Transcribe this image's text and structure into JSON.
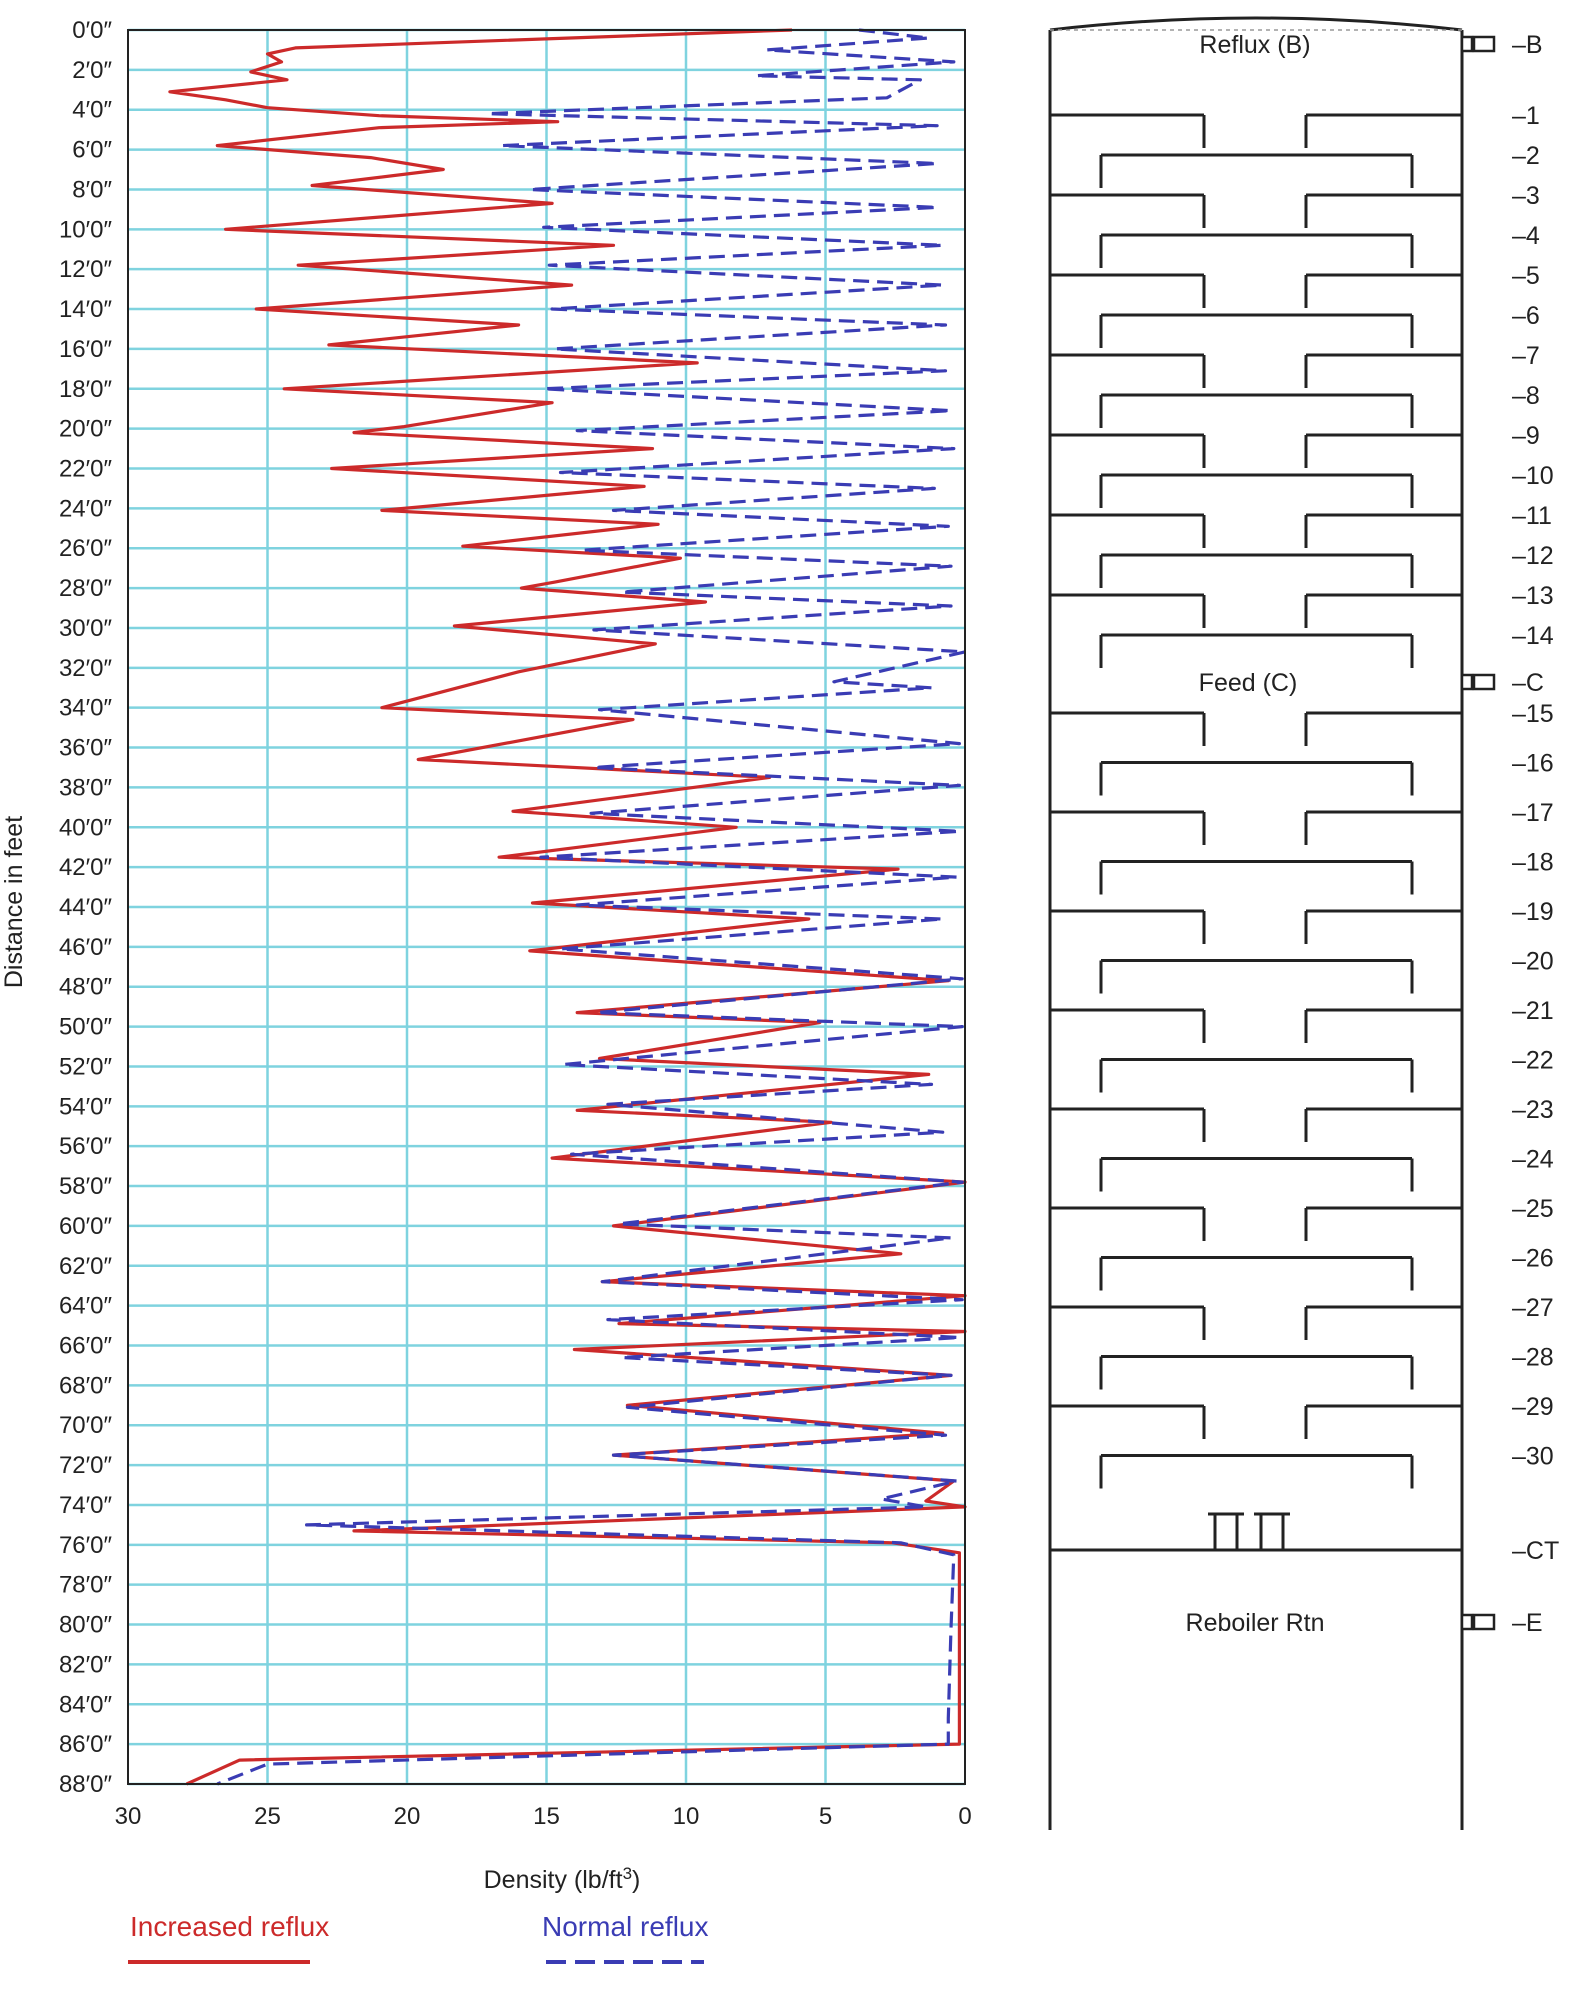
{
  "chart_data": {
    "type": "line",
    "orientation": "vertical-profile",
    "xlabel": "Density (lb/ft3)",
    "ylabel": "Distance in feet",
    "xlim": [
      0,
      30
    ],
    "x_reversed": true,
    "ylim": [
      0,
      88
    ],
    "x_ticks": [
      30,
      25,
      20,
      15,
      10,
      5,
      0
    ],
    "x_tick_labels": [
      "30",
      "25",
      "20",
      "15",
      "10",
      "5",
      "0"
    ],
    "y_ticks": [
      0,
      2,
      4,
      6,
      8,
      10,
      12,
      14,
      16,
      18,
      20,
      22,
      24,
      26,
      28,
      30,
      32,
      34,
      36,
      38,
      40,
      42,
      44,
      46,
      48,
      50,
      52,
      54,
      56,
      58,
      60,
      62,
      64,
      66,
      68,
      70,
      72,
      74,
      76,
      78,
      80,
      82,
      84,
      86,
      88
    ],
    "y_tick_labels": [
      "0′0″",
      "2′0″",
      "4′0″",
      "6′0″",
      "8′0″",
      "10′0″",
      "12′0″",
      "14′0″",
      "16′0″",
      "18′0″",
      "20′0″",
      "22′0″",
      "24′0″",
      "26′0″",
      "28′0″",
      "30′0″",
      "32′0″",
      "34′0″",
      "36′0″",
      "38′0″",
      "40′0″",
      "42′0″",
      "44′0″",
      "46′0″",
      "48′0″",
      "50′0″",
      "52′0″",
      "54′0″",
      "56′0″",
      "58′0″",
      "60′0″",
      "62′0″",
      "64′0″",
      "66′0″",
      "68′0″",
      "70′0″",
      "72′0″",
      "74′0″",
      "76′0″",
      "78′0″",
      "80′0″",
      "82′0″",
      "84′0″",
      "86′0″",
      "88′0″"
    ],
    "grid": true,
    "gridline_color": "#7fd3df",
    "legend_position": "bottom",
    "series": [
      {
        "name": "Increased reflux",
        "color": "#cc2a2a",
        "style": "solid",
        "points": [
          [
            6.2,
            0
          ],
          [
            24,
            0.9
          ],
          [
            25,
            1.2
          ],
          [
            24.5,
            1.6
          ],
          [
            25.6,
            2.1
          ],
          [
            24.3,
            2.5
          ],
          [
            28.5,
            3.1
          ],
          [
            26.5,
            3.5
          ],
          [
            25,
            3.9
          ],
          [
            21,
            4.3
          ],
          [
            14.6,
            4.6
          ],
          [
            21,
            4.9
          ],
          [
            26.8,
            5.8
          ],
          [
            21.3,
            6.4
          ],
          [
            18.7,
            7.0
          ],
          [
            23.4,
            7.8
          ],
          [
            14.8,
            8.7
          ],
          [
            26.5,
            10.0
          ],
          [
            12.6,
            10.8
          ],
          [
            23.9,
            11.8
          ],
          [
            14.1,
            12.8
          ],
          [
            25.4,
            14.0
          ],
          [
            16,
            14.8
          ],
          [
            22.8,
            15.8
          ],
          [
            9.6,
            16.7
          ],
          [
            24.4,
            18.0
          ],
          [
            14.8,
            18.7
          ],
          [
            20.1,
            19.9
          ],
          [
            21.9,
            20.2
          ],
          [
            11.2,
            21.0
          ],
          [
            22.7,
            22.0
          ],
          [
            11.5,
            22.9
          ],
          [
            20.9,
            24.1
          ],
          [
            11,
            24.8
          ],
          [
            18,
            25.9
          ],
          [
            10.2,
            26.5
          ],
          [
            14.7,
            27.7
          ],
          [
            15.9,
            28.0
          ],
          [
            9.3,
            28.7
          ],
          [
            18.3,
            29.9
          ],
          [
            11.1,
            30.8
          ],
          [
            16,
            32.2
          ],
          [
            20.9,
            34.0
          ],
          [
            11.9,
            34.6
          ],
          [
            19.6,
            36.6
          ],
          [
            7,
            37.5
          ],
          [
            16.2,
            39.2
          ],
          [
            8.2,
            40.0
          ],
          [
            16.7,
            41.5
          ],
          [
            2.4,
            42.1
          ],
          [
            15.5,
            43.8
          ],
          [
            5.6,
            44.6
          ],
          [
            15.6,
            46.2
          ],
          [
            0.6,
            47.7
          ],
          [
            13.9,
            49.3
          ],
          [
            5.2,
            49.8
          ],
          [
            13.1,
            51.6
          ],
          [
            1.3,
            52.4
          ],
          [
            13.9,
            54.2
          ],
          [
            4.8,
            54.8
          ],
          [
            14.8,
            56.6
          ],
          [
            0,
            57.8
          ],
          [
            12.6,
            60.0
          ],
          [
            2.3,
            61.4
          ],
          [
            13,
            62.8
          ],
          [
            0,
            63.5
          ],
          [
            12.4,
            64.9
          ],
          [
            0,
            65.3
          ],
          [
            14,
            66.2
          ],
          [
            0.5,
            67.5
          ],
          [
            12.1,
            69.0
          ],
          [
            0.8,
            70.4
          ],
          [
            12.6,
            71.5
          ],
          [
            0.4,
            72.8
          ],
          [
            1.4,
            73.8
          ],
          [
            0,
            74.1
          ],
          [
            21.9,
            75.3
          ],
          [
            2.6,
            75.9
          ],
          [
            0.2,
            76.4
          ],
          [
            0.2,
            86.0
          ],
          [
            26,
            86.8
          ],
          [
            27.9,
            88
          ]
        ]
      },
      {
        "name": "Normal reflux",
        "color": "#3a3cb4",
        "style": "dashed",
        "points": [
          [
            3.8,
            0
          ],
          [
            1.3,
            0.4
          ],
          [
            7.1,
            1.0
          ],
          [
            0.4,
            1.6
          ],
          [
            7.5,
            2.3
          ],
          [
            1.6,
            2.5
          ],
          [
            2.8,
            3.4
          ],
          [
            17.1,
            4.2
          ],
          [
            1,
            4.8
          ],
          [
            16.6,
            5.8
          ],
          [
            1,
            6.7
          ],
          [
            15.6,
            8.0
          ],
          [
            1,
            8.9
          ],
          [
            15.1,
            9.9
          ],
          [
            0.8,
            10.8
          ],
          [
            14.9,
            11.8
          ],
          [
            0.8,
            12.8
          ],
          [
            14.8,
            14.0
          ],
          [
            0.7,
            14.8
          ],
          [
            14.7,
            16.0
          ],
          [
            0.7,
            17.1
          ],
          [
            15.1,
            18.0
          ],
          [
            0.5,
            19.1
          ],
          [
            13.9,
            20.1
          ],
          [
            0.4,
            21.0
          ],
          [
            14.5,
            22.2
          ],
          [
            1.1,
            23.0
          ],
          [
            12.6,
            24.1
          ],
          [
            0.6,
            24.9
          ],
          [
            13.7,
            26.1
          ],
          [
            0.5,
            26.9
          ],
          [
            12.3,
            28.2
          ],
          [
            0.5,
            28.9
          ],
          [
            13.3,
            30.1
          ],
          [
            0,
            31.2
          ],
          [
            4.7,
            32.7
          ],
          [
            1.2,
            33.0
          ],
          [
            13.1,
            34.1
          ],
          [
            0.2,
            35.8
          ],
          [
            13.3,
            37.0
          ],
          [
            0.2,
            37.9
          ],
          [
            13.4,
            39.3
          ],
          [
            0.2,
            40.2
          ],
          [
            15.2,
            41.5
          ],
          [
            0.3,
            42.5
          ],
          [
            13.9,
            43.9
          ],
          [
            0.8,
            44.6
          ],
          [
            14.5,
            46.1
          ],
          [
            0.1,
            47.6
          ],
          [
            13.2,
            49.3
          ],
          [
            0.1,
            50.0
          ],
          [
            14.4,
            51.9
          ],
          [
            1.2,
            52.9
          ],
          [
            12.8,
            53.9
          ],
          [
            0.8,
            55.3
          ],
          [
            14.1,
            56.4
          ],
          [
            0.1,
            57.8
          ],
          [
            12.4,
            59.9
          ],
          [
            0.5,
            60.6
          ],
          [
            13,
            62.8
          ],
          [
            0.1,
            63.7
          ],
          [
            12.8,
            64.7
          ],
          [
            0.2,
            65.6
          ],
          [
            12.3,
            66.6
          ],
          [
            0.5,
            67.5
          ],
          [
            12.1,
            69.1
          ],
          [
            0.7,
            70.5
          ],
          [
            12.6,
            71.5
          ],
          [
            0.3,
            72.8
          ],
          [
            3,
            73.7
          ],
          [
            1.4,
            74.1
          ],
          [
            23.6,
            75.0
          ],
          [
            2.3,
            75.9
          ],
          [
            0.4,
            76.5
          ],
          [
            0.5,
            80.2
          ],
          [
            0.6,
            84.7
          ],
          [
            0.6,
            86.0
          ],
          [
            25,
            87.0
          ],
          [
            26.8,
            88
          ]
        ]
      }
    ]
  },
  "column": {
    "stages": [
      "1",
      "2",
      "3",
      "4",
      "5",
      "6",
      "7",
      "8",
      "9",
      "10",
      "11",
      "12",
      "13",
      "14",
      "15",
      "16",
      "17",
      "18",
      "19",
      "20",
      "21",
      "22",
      "23",
      "24",
      "25",
      "26",
      "27",
      "28",
      "29",
      "30"
    ],
    "nozzles": [
      {
        "id": "B",
        "label": "B",
        "inside_label": "Reflux (B)"
      },
      {
        "id": "C",
        "label": "C",
        "inside_label": "Feed (C)"
      },
      {
        "id": "E",
        "label": "E",
        "inside_label": "Reboiler Rtn"
      }
    ],
    "chimney_tray_label": "CT"
  },
  "legend_text": {
    "increased": "Increased reflux",
    "normal": "Normal reflux"
  }
}
